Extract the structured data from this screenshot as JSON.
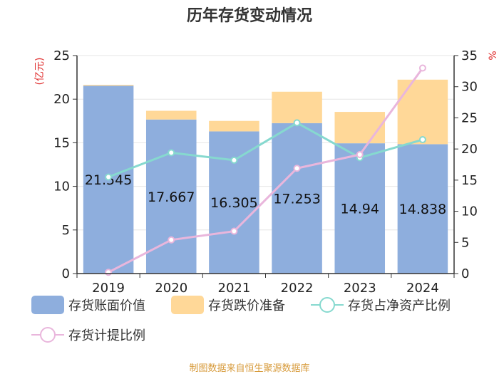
{
  "chart_data": {
    "type": "bar",
    "title": "历年存货变动情况",
    "categories": [
      "2019",
      "2020",
      "2021",
      "2022",
      "2023",
      "2024"
    ],
    "left_axis": {
      "unit_label": "(亿元)",
      "ylim": [
        0,
        25
      ],
      "ticks": [
        "0",
        "5",
        "10",
        "15",
        "20",
        "25"
      ]
    },
    "right_axis": {
      "unit_label": "%",
      "ylim": [
        0,
        35
      ],
      "ticks": [
        "0",
        "5",
        "10",
        "15",
        "20",
        "25",
        "30",
        "35"
      ]
    },
    "series": [
      {
        "name": "存货账面价值",
        "kind": "stacked-bar",
        "axis": "left",
        "color": "#8eaedd",
        "values": [
          21.545,
          17.667,
          16.305,
          17.253,
          14.94,
          14.838
        ],
        "labels": [
          "21.545",
          "17.667",
          "16.305",
          "17.253",
          "14.94",
          "14.838"
        ]
      },
      {
        "name": "存货跌价准备",
        "kind": "stacked-bar",
        "axis": "left",
        "color": "#ffd898",
        "values": [
          0.1,
          1.0,
          1.2,
          3.6,
          3.6,
          7.4
        ]
      },
      {
        "name": "存货占净资产比例",
        "kind": "line",
        "axis": "right",
        "color": "#86d9cf",
        "values": [
          15.5,
          19.4,
          18.2,
          24.2,
          18.6,
          21.5
        ]
      },
      {
        "name": "存货计提比例",
        "kind": "line",
        "axis": "right",
        "color": "#e9b6dc",
        "values": [
          0.2,
          5.4,
          6.8,
          16.9,
          19.1,
          33.0
        ]
      }
    ],
    "legend_position": "bottom",
    "grid": true
  },
  "footer": {
    "source": "制图数据来自恒生聚源数据库"
  }
}
